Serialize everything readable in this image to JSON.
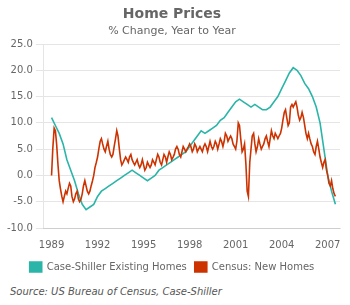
{
  "chart_data": {
    "type": "line",
    "title": "Home Prices",
    "subtitle": "% Change, Year to Year",
    "source": "Source: US Bureau of Census, Case-Shiller",
    "xlim": [
      1988.5,
      2007.8
    ],
    "xticks": [
      1989,
      1992,
      1995,
      1998,
      2001,
      2004,
      2007
    ],
    "ylim": [
      -10.0,
      25.0
    ],
    "yticks": [
      {
        "value": -10.0,
        "label": "-10.0"
      },
      {
        "value": -5.0,
        "label": "-5.0"
      },
      {
        "value": 0.0,
        "label": "0.0"
      },
      {
        "value": 5.0,
        "label": "5.0"
      },
      {
        "value": 10.0,
        "label": "10.0"
      },
      {
        "value": 15.0,
        "label": "15.0"
      },
      {
        "value": 20.0,
        "label": "20.0"
      },
      {
        "value": 25.0,
        "label": "25.0"
      }
    ],
    "grid": "y",
    "legend": "bottom",
    "series": [
      {
        "name": "Census: New Homes",
        "color": "#cc3300",
        "x": [
          1989.0,
          1989.08,
          1989.17,
          1989.25,
          1989.33,
          1989.42,
          1989.5,
          1989.58,
          1989.67,
          1989.75,
          1989.83,
          1989.92,
          1990.0,
          1990.08,
          1990.17,
          1990.25,
          1990.33,
          1990.42,
          1990.5,
          1990.58,
          1990.67,
          1990.75,
          1990.83,
          1990.92,
          1991.0,
          1991.08,
          1991.17,
          1991.25,
          1991.33,
          1991.42,
          1991.5,
          1991.58,
          1991.67,
          1991.75,
          1991.83,
          1991.92,
          1992.0,
          1992.08,
          1992.17,
          1992.25,
          1992.33,
          1992.42,
          1992.5,
          1992.58,
          1992.67,
          1992.75,
          1992.83,
          1992.92,
          1993.0,
          1993.08,
          1993.17,
          1993.25,
          1993.33,
          1993.42,
          1993.5,
          1993.58,
          1993.67,
          1993.75,
          1993.83,
          1993.92,
          1994.0,
          1994.08,
          1994.17,
          1994.25,
          1994.33,
          1994.42,
          1994.5,
          1994.58,
          1994.67,
          1994.75,
          1994.83,
          1994.92,
          1995.0,
          1995.08,
          1995.17,
          1995.25,
          1995.33,
          1995.42,
          1995.5,
          1995.58,
          1995.67,
          1995.75,
          1995.83,
          1995.92,
          1996.0,
          1996.08,
          1996.17,
          1996.25,
          1996.33,
          1996.42,
          1996.5,
          1996.58,
          1996.67,
          1996.75,
          1996.83,
          1996.92,
          1997.0,
          1997.08,
          1997.17,
          1997.25,
          1997.33,
          1997.42,
          1997.5,
          1997.58,
          1997.67,
          1997.75,
          1997.83,
          1997.92,
          1998.0,
          1998.08,
          1998.17,
          1998.25,
          1998.33,
          1998.42,
          1998.5,
          1998.58,
          1998.67,
          1998.75,
          1998.83,
          1998.92,
          1999.0,
          1999.08,
          1999.17,
          1999.25,
          1999.33,
          1999.42,
          1999.5,
          1999.58,
          1999.67,
          1999.75,
          1999.83,
          1999.92,
          2000.0,
          2000.08,
          2000.17,
          2000.25,
          2000.33,
          2000.42,
          2000.5,
          2000.58,
          2000.67,
          2000.75,
          2000.83,
          2000.92,
          2001.0,
          2001.08,
          2001.17,
          2001.25,
          2001.33,
          2001.42,
          2001.5,
          2001.58,
          2001.67,
          2001.75,
          2001.83,
          2001.92,
          2002.0,
          2002.08,
          2002.17,
          2002.25,
          2002.33,
          2002.42,
          2002.5,
          2002.58,
          2002.67,
          2002.75,
          2002.83,
          2002.92,
          2003.0,
          2003.08,
          2003.17,
          2003.25,
          2003.33,
          2003.42,
          2003.5,
          2003.58,
          2003.67,
          2003.75,
          2003.83,
          2003.92,
          2004.0,
          2004.08,
          2004.17,
          2004.25,
          2004.33,
          2004.42,
          2004.5,
          2004.58,
          2004.67,
          2004.75,
          2004.83,
          2004.92,
          2005.0,
          2005.08,
          2005.17,
          2005.25,
          2005.33,
          2005.42,
          2005.5,
          2005.58,
          2005.67,
          2005.75,
          2005.83,
          2005.92,
          2006.0,
          2006.08,
          2006.17,
          2006.25,
          2006.33,
          2006.42,
          2006.5,
          2006.58,
          2006.67,
          2006.75,
          2006.83,
          2006.92,
          2007.0,
          2007.08,
          2007.17,
          2007.25,
          2007.33,
          2007.42,
          2007.5
        ],
        "values": [
          0.0,
          5.0,
          9.0,
          8.5,
          6.0,
          2.0,
          -1.0,
          -2.5,
          -4.0,
          -5.0,
          -4.0,
          -3.0,
          -3.5,
          -2.5,
          -1.5,
          -2.0,
          -4.0,
          -5.0,
          -4.5,
          -3.5,
          -3.0,
          -4.5,
          -5.0,
          -4.5,
          -3.5,
          -2.0,
          -1.0,
          -2.0,
          -3.0,
          -3.5,
          -3.0,
          -2.0,
          -1.0,
          0.0,
          1.5,
          2.5,
          3.5,
          5.0,
          6.5,
          7.0,
          6.0,
          5.0,
          4.5,
          5.5,
          6.5,
          5.0,
          4.0,
          3.5,
          4.0,
          5.5,
          7.0,
          8.5,
          7.5,
          5.0,
          3.0,
          2.0,
          2.5,
          3.0,
          3.5,
          3.0,
          2.5,
          3.5,
          4.0,
          3.0,
          2.5,
          2.0,
          2.5,
          3.0,
          2.0,
          1.5,
          2.0,
          3.0,
          2.0,
          1.0,
          1.5,
          2.5,
          2.0,
          1.5,
          2.0,
          3.0,
          2.5,
          2.0,
          3.0,
          4.0,
          3.5,
          2.5,
          2.0,
          3.0,
          4.0,
          3.5,
          2.5,
          3.5,
          4.5,
          4.0,
          3.0,
          3.5,
          4.0,
          5.0,
          5.5,
          5.0,
          4.0,
          3.5,
          4.5,
          5.5,
          5.0,
          4.5,
          5.0,
          5.5,
          6.0,
          5.5,
          4.5,
          5.0,
          6.0,
          5.5,
          4.5,
          5.0,
          5.5,
          5.0,
          4.5,
          5.5,
          6.0,
          5.5,
          4.5,
          5.5,
          6.5,
          5.5,
          5.0,
          5.5,
          6.5,
          6.0,
          5.0,
          6.0,
          7.0,
          6.5,
          5.5,
          6.5,
          8.0,
          7.5,
          6.5,
          7.0,
          7.5,
          7.0,
          6.0,
          5.5,
          5.0,
          6.5,
          10.0,
          9.5,
          7.0,
          4.5,
          5.0,
          6.0,
          2.0,
          -3.0,
          -4.0,
          2.5,
          5.0,
          7.5,
          8.0,
          6.0,
          4.5,
          5.5,
          7.0,
          6.0,
          5.0,
          5.5,
          6.0,
          7.0,
          7.5,
          6.5,
          5.5,
          7.0,
          8.5,
          7.5,
          7.0,
          8.0,
          7.5,
          7.0,
          7.5,
          8.0,
          9.0,
          10.5,
          12.0,
          12.5,
          11.0,
          9.5,
          10.0,
          13.0,
          13.5,
          13.0,
          13.5,
          14.0,
          13.0,
          11.5,
          10.5,
          11.0,
          12.0,
          11.0,
          9.5,
          8.0,
          7.0,
          8.0,
          7.0,
          6.0,
          5.5,
          4.5,
          4.0,
          5.5,
          6.5,
          5.0,
          3.5,
          2.5,
          1.5,
          2.5,
          3.0,
          1.0,
          0.0,
          -1.5,
          -2.0,
          -1.0,
          -2.5,
          -3.5,
          -4.0
        ]
      },
      {
        "name": "Case-Shiller Existing Homes",
        "color": "#2ab5a8",
        "x": [
          1989.0,
          1989.25,
          1989.5,
          1989.75,
          1990.0,
          1990.25,
          1990.5,
          1990.75,
          1991.0,
          1991.25,
          1991.5,
          1991.75,
          1992.0,
          1992.25,
          1992.5,
          1992.75,
          1993.0,
          1993.25,
          1993.5,
          1993.75,
          1994.0,
          1994.25,
          1994.5,
          1994.75,
          1995.0,
          1995.25,
          1995.5,
          1995.75,
          1996.0,
          1996.25,
          1996.5,
          1996.75,
          1997.0,
          1997.25,
          1997.5,
          1997.75,
          1998.0,
          1998.25,
          1998.5,
          1998.75,
          1999.0,
          1999.25,
          1999.5,
          1999.75,
          2000.0,
          2000.25,
          2000.5,
          2000.75,
          2001.0,
          2001.25,
          2001.5,
          2001.75,
          2002.0,
          2002.25,
          2002.5,
          2002.75,
          2003.0,
          2003.25,
          2003.5,
          2003.75,
          2004.0,
          2004.25,
          2004.5,
          2004.75,
          2005.0,
          2005.25,
          2005.5,
          2005.75,
          2006.0,
          2006.25,
          2006.5,
          2006.75,
          2007.0,
          2007.25,
          2007.5
        ],
        "values": [
          11.0,
          9.5,
          8.0,
          6.0,
          3.0,
          1.0,
          -1.0,
          -3.5,
          -5.5,
          -6.5,
          -6.0,
          -5.5,
          -4.0,
          -3.0,
          -2.5,
          -2.0,
          -1.5,
          -1.0,
          -0.5,
          0.0,
          0.5,
          1.0,
          0.5,
          0.0,
          -0.5,
          -1.0,
          -0.5,
          0.0,
          1.0,
          1.5,
          2.0,
          2.5,
          3.0,
          3.5,
          4.0,
          4.5,
          5.5,
          6.5,
          7.5,
          8.5,
          8.0,
          8.5,
          9.0,
          9.5,
          10.5,
          11.0,
          12.0,
          13.0,
          14.0,
          14.5,
          14.0,
          13.5,
          13.0,
          13.5,
          13.0,
          12.5,
          12.5,
          13.0,
          14.0,
          15.0,
          16.5,
          18.0,
          19.5,
          20.5,
          20.0,
          19.0,
          17.5,
          16.5,
          15.0,
          13.0,
          10.0,
          5.0,
          0.0,
          -3.0,
          -5.5
        ]
      }
    ]
  }
}
